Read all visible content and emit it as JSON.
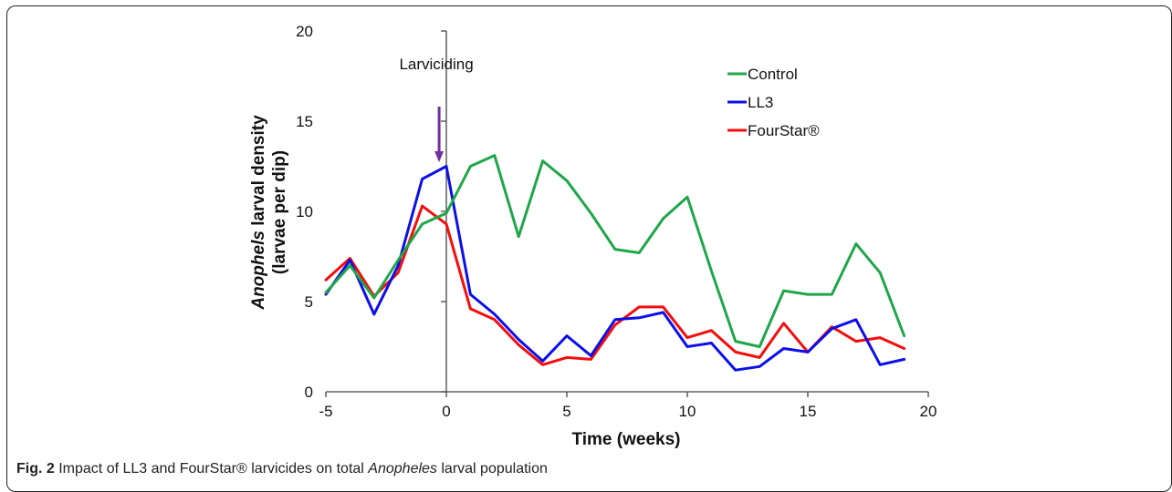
{
  "caption": {
    "fig_label": "Fig. 2",
    "text_before": " Impact of LL3 and FourStar® larvicides on total ",
    "italic": "Anopheles",
    "text_after": " larval population"
  },
  "chart_data": {
    "type": "line",
    "title": "",
    "xlabel": "Time (weeks)",
    "ylabel_italic": "Anophels",
    "ylabel_rest": " larval density",
    "ylabel_line2": "(larvae per dip)",
    "xlim": [
      -5,
      20
    ],
    "ylim": [
      0,
      20
    ],
    "x_ticks": [
      -5,
      0,
      5,
      10,
      15,
      20
    ],
    "y_ticks": [
      0,
      5,
      10,
      15,
      20
    ],
    "grid": false,
    "legend_position": "top-right",
    "annotation": {
      "text": "Larviciding",
      "x": -0.3,
      "arrow_color": "#7030a0"
    },
    "x": [
      -5,
      -4,
      -3,
      -2,
      -1,
      0,
      1,
      2,
      3,
      4,
      5,
      6,
      7,
      8,
      9,
      10,
      11,
      12,
      13,
      14,
      15,
      16,
      17,
      18,
      19
    ],
    "series": [
      {
        "name": "Control",
        "color": "#1fa64a",
        "values": [
          5.5,
          7.0,
          5.2,
          7.3,
          9.3,
          9.9,
          12.5,
          13.1,
          8.6,
          12.8,
          11.7,
          9.9,
          7.9,
          7.7,
          9.6,
          10.8,
          6.7,
          2.8,
          2.5,
          5.6,
          5.4,
          5.4,
          8.2,
          6.6,
          3.1
        ]
      },
      {
        "name": "LL3",
        "color": "#0c0fe8",
        "values": [
          5.4,
          7.3,
          4.3,
          7.0,
          11.8,
          12.5,
          5.4,
          4.3,
          2.9,
          1.7,
          3.1,
          2.0,
          4.0,
          4.1,
          4.4,
          2.5,
          2.7,
          1.2,
          1.4,
          2.4,
          2.2,
          3.5,
          4.0,
          1.5,
          1.8
        ]
      },
      {
        "name": "FourStar®",
        "color": "#f40d0d",
        "values": [
          6.2,
          7.4,
          5.3,
          6.6,
          10.3,
          9.3,
          4.6,
          4.0,
          2.6,
          1.5,
          1.9,
          1.8,
          3.7,
          4.7,
          4.7,
          3.0,
          3.4,
          2.2,
          1.9,
          3.8,
          2.2,
          3.6,
          2.8,
          3.0,
          2.4
        ]
      }
    ]
  }
}
